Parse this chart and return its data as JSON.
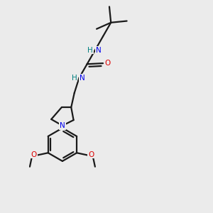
{
  "background_color": "#ebebeb",
  "bond_color": "#1a1a1a",
  "nitrogen_color": "#0000ee",
  "oxygen_color": "#dd0000",
  "teal_color": "#008080",
  "line_width": 1.6,
  "figsize": [
    3.0,
    3.0
  ],
  "dpi": 100,
  "xlim": [
    0.15,
    0.85
  ],
  "ylim": [
    0.02,
    0.98
  ]
}
